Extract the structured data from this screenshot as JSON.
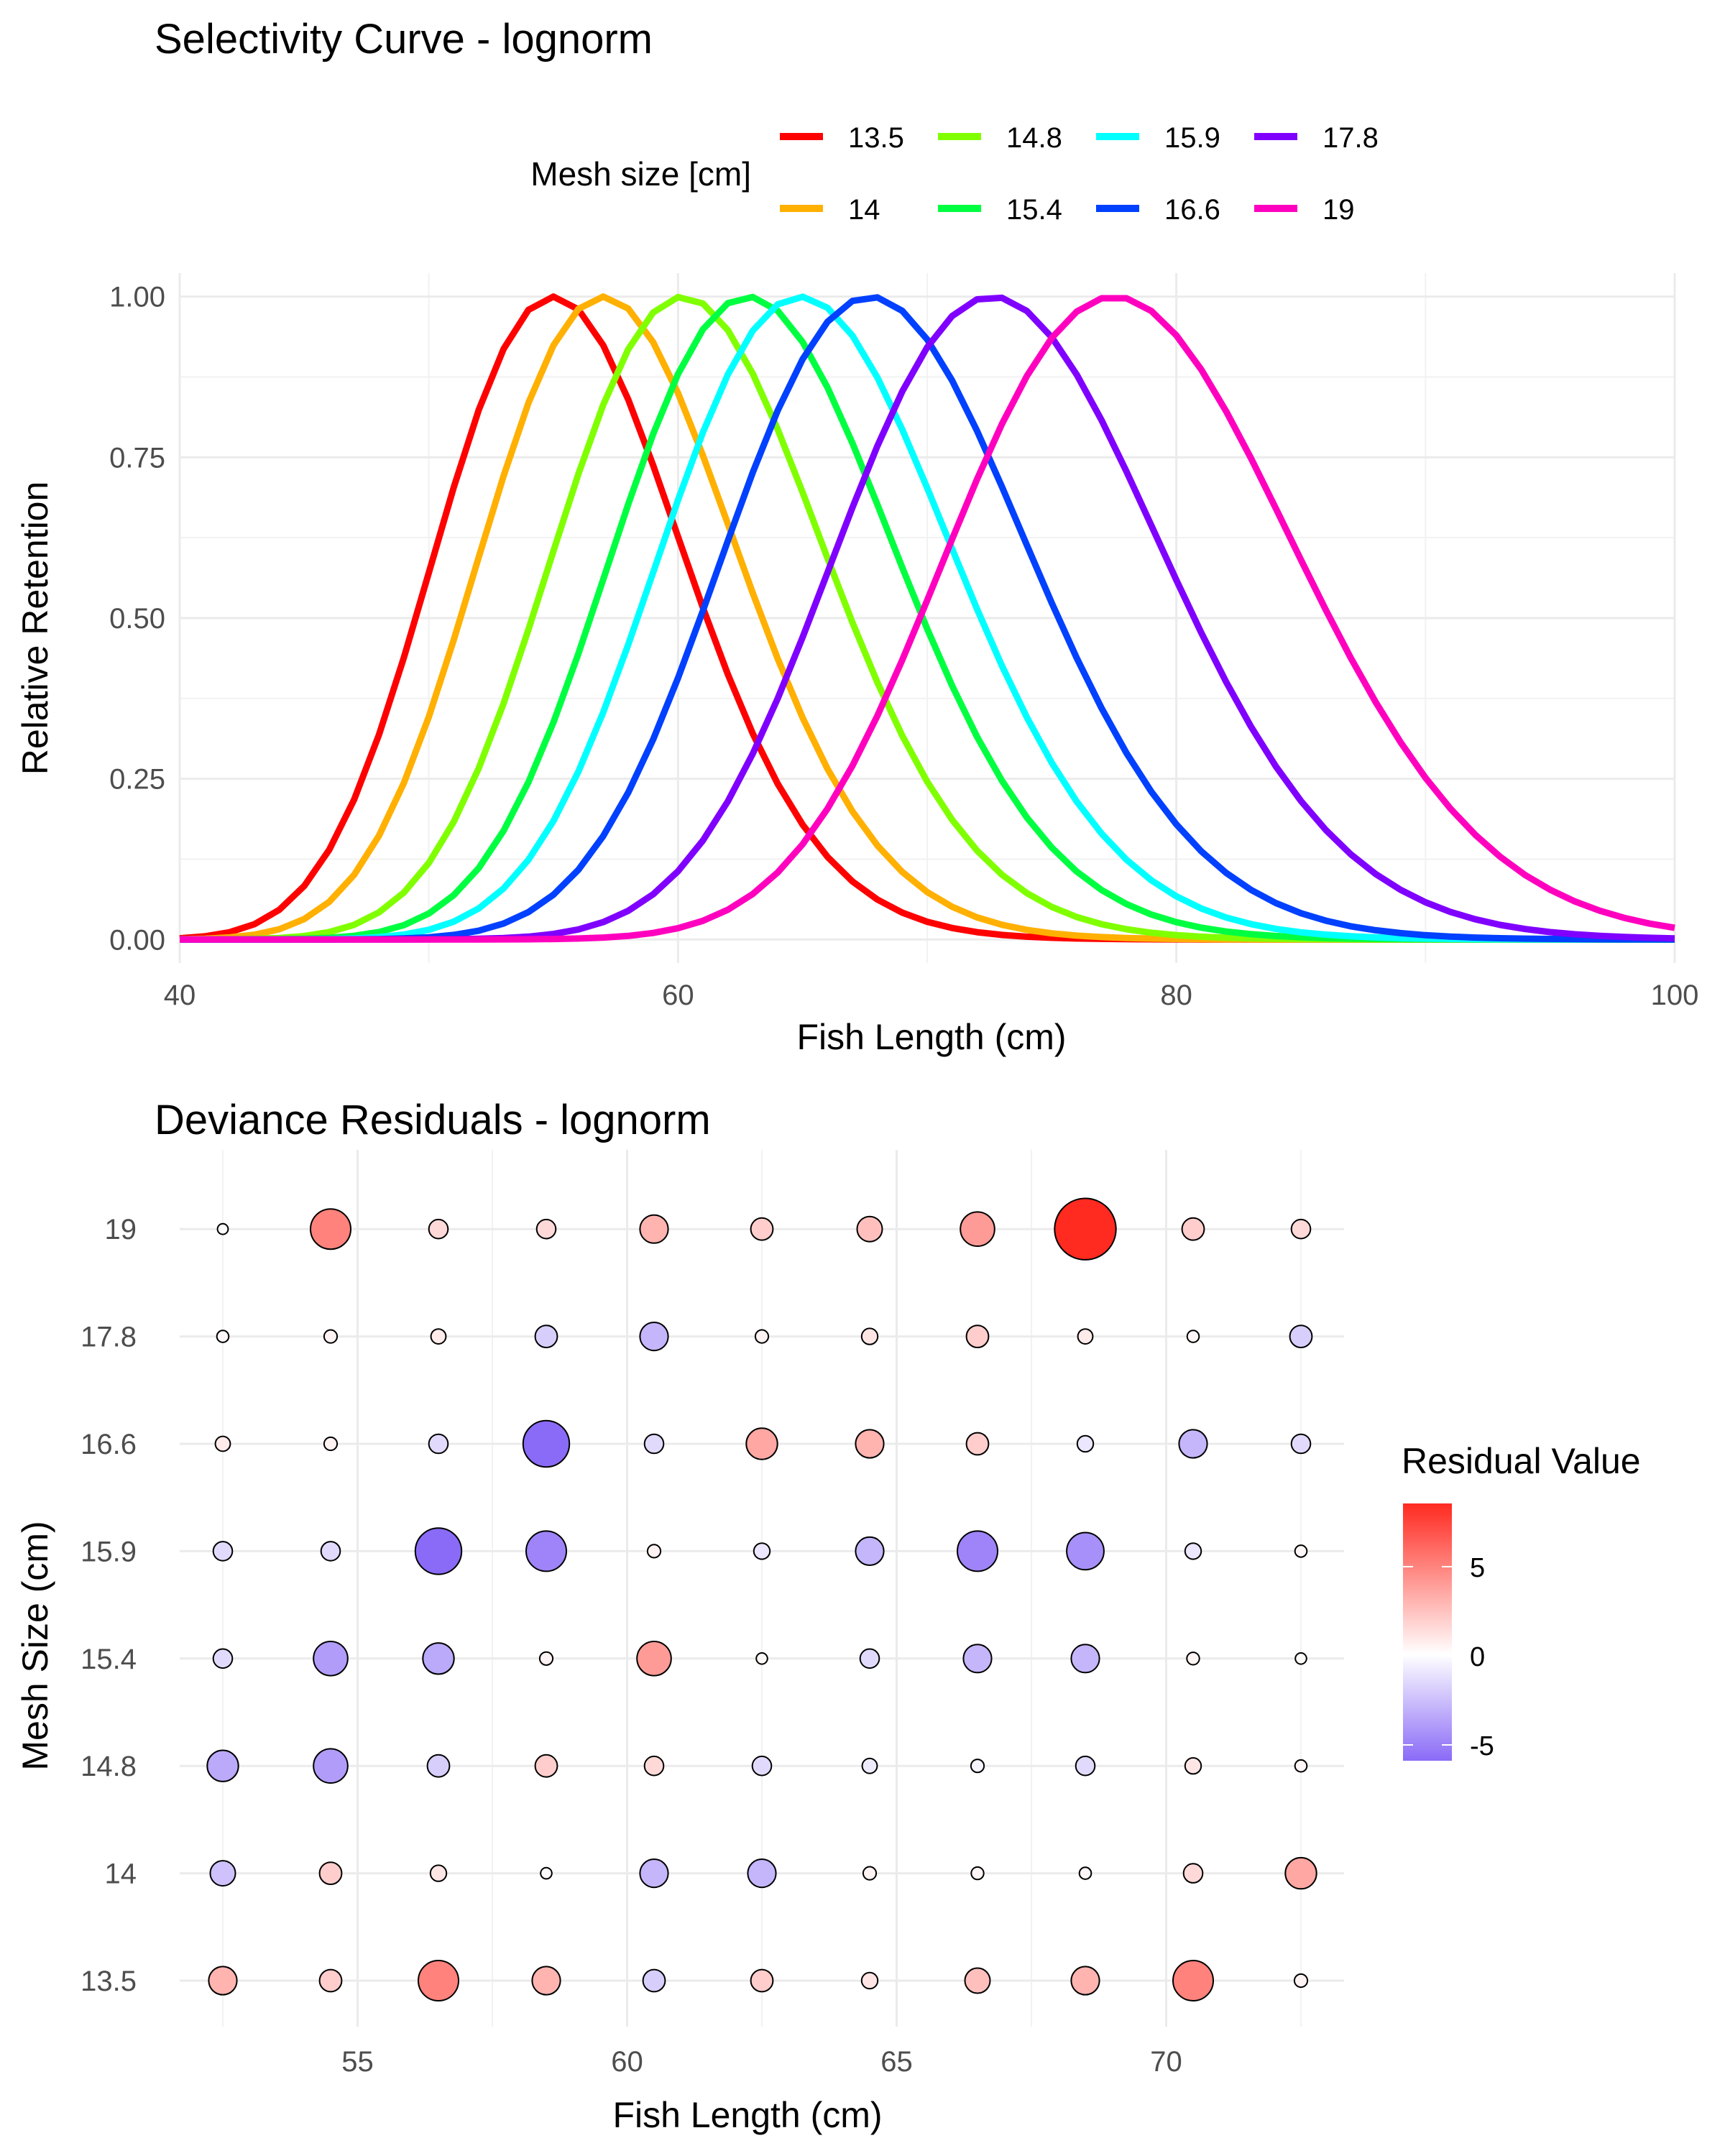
{
  "top_chart": {
    "title": "Selectivity Curve - lognorm",
    "xlabel": "Fish Length (cm)",
    "ylabel": "Relative Retention",
    "legend_title": "Mesh size [cm]"
  },
  "bottom_chart": {
    "title": "Deviance Residuals - lognorm",
    "xlabel": "Fish Length (cm)",
    "ylabel": "Mesh Size (cm)",
    "legend_title": "Residual Value",
    "legend_ticks": [
      "5",
      "0",
      "-5"
    ]
  },
  "chart_data": [
    {
      "type": "line",
      "title": "Selectivity Curve - lognorm",
      "xlabel": "Fish Length (cm)",
      "ylabel": "Relative Retention",
      "xlim": [
        40,
        100
      ],
      "ylim": [
        0,
        1
      ],
      "x_ticks": [
        40,
        60,
        80,
        100
      ],
      "y_ticks": [
        0,
        0.25,
        0.5,
        0.75,
        1
      ],
      "y_tick_labels": [
        "0.00",
        "0.25",
        "0.50",
        "0.75",
        "1.00"
      ],
      "grid": true,
      "legend_position": "top",
      "series": [
        {
          "name": "13.5",
          "color": "#FF0000",
          "mode": 55,
          "sdlog": 0.09
        },
        {
          "name": "14",
          "color": "#FFB000",
          "mode": 57,
          "sdlog": 0.09
        },
        {
          "name": "14.8",
          "color": "#80FF00",
          "mode": 60.2,
          "sdlog": 0.09
        },
        {
          "name": "15.4",
          "color": "#00FF40",
          "mode": 62.8,
          "sdlog": 0.09
        },
        {
          "name": "15.9",
          "color": "#00FFFF",
          "mode": 64.9,
          "sdlog": 0.09
        },
        {
          "name": "16.6",
          "color": "#0040FF",
          "mode": 67.7,
          "sdlog": 0.09
        },
        {
          "name": "17.8",
          "color": "#8000FF",
          "mode": 72.6,
          "sdlog": 0.09
        },
        {
          "name": "19",
          "color": "#FF00BF",
          "mode": 77.5,
          "sdlog": 0.09
        }
      ]
    },
    {
      "type": "scatter",
      "subtype": "bubble",
      "title": "Deviance Residuals - lognorm",
      "xlabel": "Fish Length (cm)",
      "ylabel": "Mesh Size (cm)",
      "x": [
        52.5,
        54.5,
        56.5,
        58.5,
        60.5,
        62.5,
        64.5,
        66.5,
        68.5,
        70.5,
        72.5
      ],
      "categories": [
        "13.5",
        "14",
        "14.8",
        "15.4",
        "15.9",
        "16.6",
        "17.8",
        "19"
      ],
      "xlim": [
        51.7,
        73.3
      ],
      "x_ticks": [
        55,
        60,
        65,
        70
      ],
      "color_range": [
        -6,
        8.5
      ],
      "legend_position": "right",
      "residuals": [
        [
          3,
          2,
          5,
          3,
          -2,
          2,
          1,
          2.5,
          3,
          5,
          0.5
        ],
        [
          -2.5,
          2,
          1,
          0.2,
          -3,
          -3,
          0.5,
          0.4,
          0.3,
          1.5,
          3.5
        ],
        [
          -3.5,
          -4,
          -2,
          2,
          1.5,
          -1.5,
          -0.8,
          -0.5,
          -1.5,
          1,
          0.3
        ],
        [
          -1.5,
          -4,
          -3.5,
          0.5,
          4,
          0.2,
          -1.5,
          -3,
          -3,
          0.4,
          0.2
        ],
        [
          -1.5,
          -1.5,
          -6,
          -5,
          0.5,
          -1,
          -3,
          -5,
          -4.5,
          -1,
          0.3
        ],
        [
          0.8,
          0.5,
          -1.5,
          -6,
          -1.5,
          3.5,
          3,
          2,
          -1,
          -3,
          -1.5
        ],
        [
          0.3,
          0.5,
          0.8,
          -2,
          -3,
          0.5,
          1,
          2,
          0.8,
          0.3,
          -2
        ],
        [
          0.1,
          5,
          1.5,
          1.5,
          3,
          2,
          2.5,
          4,
          8.5,
          2,
          1.5
        ]
      ]
    }
  ]
}
